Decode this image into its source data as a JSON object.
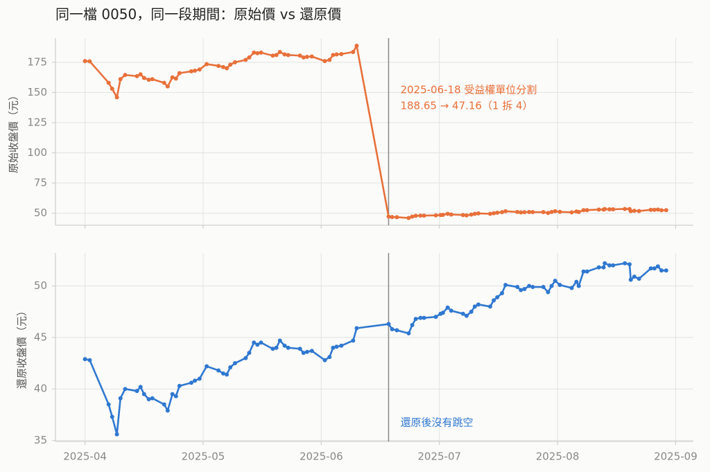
{
  "title": "同一檔 0050，同一段期間：原始價 vs 還原價",
  "chart_data": [
    {
      "type": "line",
      "ylabel": "原始收盤價（元）",
      "color": "#e8703a",
      "x": [
        4.0,
        4.04,
        4.2,
        4.23,
        4.27,
        4.3,
        4.34,
        4.44,
        4.47,
        4.5,
        4.54,
        4.57,
        4.67,
        4.7,
        4.74,
        4.77,
        4.8,
        4.9,
        4.93,
        4.97,
        5.03,
        5.13,
        5.17,
        5.2,
        5.23,
        5.27,
        5.36,
        5.39,
        5.43,
        5.46,
        5.49,
        5.59,
        5.62,
        5.65,
        5.69,
        5.72,
        5.82,
        5.85,
        5.88,
        5.92,
        6.03,
        6.07,
        6.1,
        6.13,
        6.17,
        6.27,
        6.3,
        6.57,
        6.6,
        6.64,
        6.74,
        6.77,
        6.8,
        6.84,
        6.87,
        6.97,
        7.01,
        7.03,
        7.07,
        7.1,
        7.2,
        7.23,
        7.27,
        7.3,
        7.33,
        7.43,
        7.46,
        7.49,
        7.53,
        7.56,
        7.66,
        7.69,
        7.72,
        7.76,
        7.79,
        7.88,
        7.92,
        7.95,
        7.98,
        8.02,
        8.12,
        8.16,
        8.18,
        8.22,
        8.25,
        8.35,
        8.39,
        8.4,
        8.44,
        8.47,
        8.57,
        8.61,
        8.62,
        8.65,
        8.69,
        8.79,
        8.82,
        8.85,
        8.88,
        8.92
      ],
      "values": [
        176,
        175.8,
        158,
        153,
        146,
        161,
        164.5,
        163.5,
        165,
        162,
        160.5,
        161,
        158,
        155,
        162.5,
        161.5,
        166,
        167.5,
        168,
        169,
        173.5,
        172,
        171,
        170,
        173,
        175,
        177,
        179,
        183,
        182.5,
        183,
        180.5,
        181,
        183.5,
        181.5,
        181,
        180.5,
        179,
        179.5,
        179.8,
        176,
        177,
        181,
        181.5,
        181.8,
        183.5,
        188.65,
        47.16,
        46.8,
        46.7,
        46.0,
        47.2,
        47.8,
        48.0,
        48.0,
        48.2,
        48.5,
        48.6,
        49.5,
        48.9,
        48.5,
        48.2,
        48.8,
        49.5,
        49.8,
        49.5,
        50.0,
        50.4,
        50.8,
        51.6,
        51.0,
        50.6,
        50.8,
        51.0,
        50.9,
        50.9,
        50.2,
        51.0,
        51.6,
        51.1,
        50.7,
        51.4,
        51.0,
        52.5,
        52.5,
        53.0,
        53.0,
        53.4,
        53.2,
        53.2,
        53.5,
        53.4,
        51.7,
        52.0,
        51.8,
        52.8,
        52.8,
        53.0,
        52.4,
        52.5
      ],
      "xlim": [
        3.75,
        9.15
      ],
      "ylim": [
        40,
        195
      ],
      "yticks": [
        50,
        75,
        100,
        125,
        150,
        175
      ],
      "grid": true,
      "split_x": 6.57,
      "annotation": [
        "2025-06-18 受益權單位分割",
        "188.65 → 47.16（1 拆 4）"
      ]
    },
    {
      "type": "line",
      "ylabel": "還原收盤價（元）",
      "color": "#2f78d0",
      "x": [
        4.0,
        4.04,
        4.2,
        4.23,
        4.27,
        4.3,
        4.34,
        4.44,
        4.47,
        4.5,
        4.54,
        4.57,
        4.67,
        4.7,
        4.74,
        4.77,
        4.8,
        4.9,
        4.93,
        4.97,
        5.03,
        5.13,
        5.17,
        5.2,
        5.23,
        5.27,
        5.36,
        5.39,
        5.43,
        5.46,
        5.49,
        5.59,
        5.62,
        5.65,
        5.69,
        5.72,
        5.82,
        5.85,
        5.88,
        5.92,
        6.03,
        6.07,
        6.1,
        6.13,
        6.17,
        6.27,
        6.3,
        6.57,
        6.6,
        6.64,
        6.74,
        6.77,
        6.8,
        6.84,
        6.87,
        6.97,
        7.01,
        7.03,
        7.07,
        7.1,
        7.2,
        7.23,
        7.27,
        7.3,
        7.33,
        7.43,
        7.46,
        7.49,
        7.53,
        7.56,
        7.66,
        7.69,
        7.72,
        7.76,
        7.79,
        7.88,
        7.92,
        7.95,
        7.98,
        8.02,
        8.12,
        8.16,
        8.18,
        8.22,
        8.25,
        8.35,
        8.39,
        8.4,
        8.44,
        8.47,
        8.57,
        8.61,
        8.62,
        8.65,
        8.69,
        8.79,
        8.82,
        8.85,
        8.88,
        8.92
      ],
      "values": [
        42.9,
        42.8,
        38.5,
        37.3,
        35.6,
        39.1,
        40.0,
        39.8,
        40.2,
        39.5,
        39.0,
        39.1,
        38.5,
        37.9,
        39.5,
        39.3,
        40.3,
        40.6,
        40.8,
        41.0,
        42.2,
        41.8,
        41.5,
        41.4,
        42.1,
        42.5,
        43.0,
        43.5,
        44.5,
        44.3,
        44.5,
        43.9,
        44.0,
        44.7,
        44.2,
        44.0,
        43.9,
        43.5,
        43.6,
        43.7,
        42.8,
        43.1,
        44.0,
        44.1,
        44.2,
        44.7,
        45.9,
        46.3,
        45.8,
        45.7,
        45.4,
        46.2,
        46.8,
        46.9,
        46.9,
        47.0,
        47.3,
        47.4,
        47.9,
        47.6,
        47.3,
        47.1,
        47.5,
        48.0,
        48.2,
        48.0,
        48.6,
        48.9,
        49.3,
        50.1,
        49.9,
        49.6,
        49.7,
        50.0,
        49.9,
        49.9,
        49.4,
        50.0,
        50.5,
        50.1,
        49.8,
        50.4,
        50.0,
        51.4,
        51.4,
        51.8,
        51.8,
        52.2,
        52.0,
        52.0,
        52.2,
        52.1,
        50.6,
        50.9,
        50.7,
        51.7,
        51.7,
        51.9,
        51.5,
        51.5
      ],
      "xlim": [
        3.75,
        9.15
      ],
      "ylim": [
        34.9,
        53.2
      ],
      "yticks": [
        35,
        40,
        45,
        50
      ],
      "grid": true,
      "xticks": [
        {
          "value": 4,
          "label": "2025-04"
        },
        {
          "value": 5,
          "label": "2025-05"
        },
        {
          "value": 6,
          "label": "2025-06"
        },
        {
          "value": 7,
          "label": "2025-07"
        },
        {
          "value": 8,
          "label": "2025-08"
        },
        {
          "value": 9,
          "label": "2025-09"
        }
      ],
      "split_x": 6.57,
      "annotation": [
        "還原後沒有跳空"
      ]
    }
  ]
}
